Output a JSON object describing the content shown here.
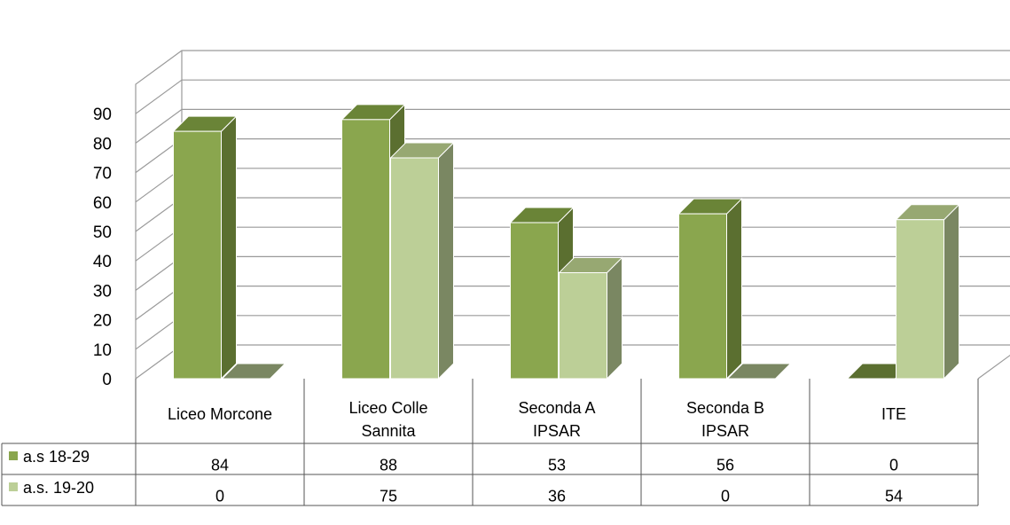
{
  "chart_data": {
    "type": "bar",
    "style": "3d-clustered-column-with-data-table",
    "categories": [
      [
        "Liceo Morcone"
      ],
      [
        "Liceo Colle",
        "Sannita"
      ],
      [
        "Seconda A",
        "IPSAR"
      ],
      [
        "Seconda B",
        "IPSAR"
      ],
      [
        "ITE"
      ]
    ],
    "series": [
      {
        "name": "a.s 18-29",
        "values": [
          84,
          88,
          53,
          56,
          0
        ],
        "color": "#8aa64e",
        "side_color": "#5b6f30",
        "top_color": "#6a8437"
      },
      {
        "name": "a.s. 19-20",
        "values": [
          0,
          75,
          36,
          0,
          54
        ],
        "color": "#bccf97",
        "side_color": "#7a8762",
        "top_color": "#97a872"
      }
    ],
    "y_ticks": [
      "0",
      "10",
      "20",
      "30",
      "40",
      "50",
      "60",
      "70",
      "80",
      "90"
    ],
    "ylim": [
      0,
      100
    ],
    "grid": true,
    "legend": "data-table-left"
  }
}
